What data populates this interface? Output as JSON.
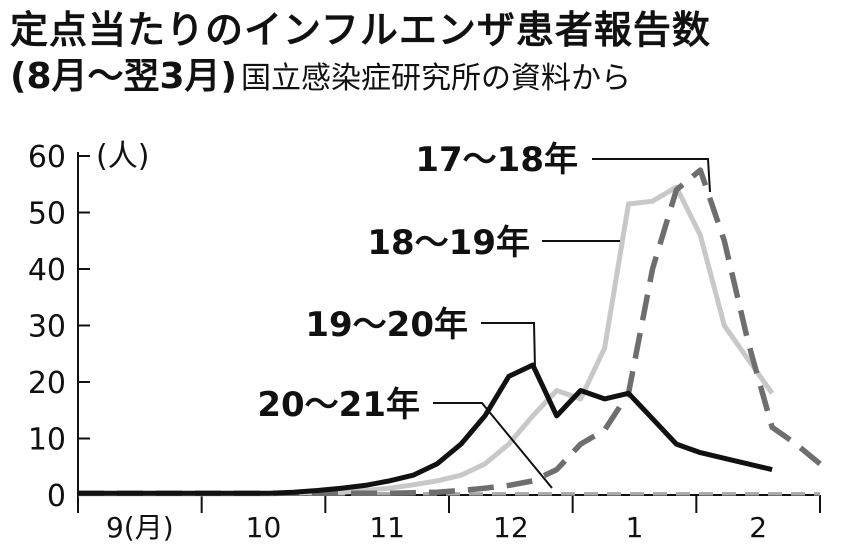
{
  "header": {
    "title": "定点当たりのインフルエンザ患者報告数",
    "subtitle_bold": "(8月〜翌3月)",
    "subtitle_source": "国立感染症研究所の資料から"
  },
  "chart_data": {
    "type": "line",
    "y_unit_label": "(人)",
    "ylim": [
      0,
      60
    ],
    "yticks": [
      0,
      10,
      20,
      30,
      40,
      50,
      60
    ],
    "month_labels": [
      "9(月)",
      "10",
      "11",
      "12",
      "1",
      "2"
    ],
    "x_range": [
      0,
      31
    ],
    "series": [
      {
        "name": "17〜18年",
        "color": "#6e6e6e",
        "dash": "long-dash",
        "x": [
          0,
          1,
          2,
          3,
          4,
          5,
          6,
          7,
          8,
          9,
          10,
          11,
          12,
          13,
          14,
          15,
          16,
          17,
          18,
          19,
          20,
          21,
          22,
          23,
          24,
          25,
          26,
          27,
          28,
          29,
          30,
          31
        ],
        "values": [
          0.3,
          0.3,
          0.3,
          0.3,
          0.3,
          0.3,
          0.3,
          0.3,
          0.3,
          0.3,
          0.3,
          0.3,
          0.3,
          0.3,
          0.4,
          0.5,
          0.8,
          1.2,
          1.7,
          2.5,
          4.5,
          9,
          11.5,
          18,
          40,
          54,
          57.5,
          45,
          27,
          12,
          9,
          5.5
        ]
      },
      {
        "name": "18〜19年",
        "color": "#c8c8c8",
        "dash": "solid",
        "x": [
          0,
          1,
          2,
          3,
          4,
          5,
          6,
          7,
          8,
          9,
          10,
          11,
          12,
          13,
          14,
          15,
          16,
          17,
          18,
          19,
          20,
          21,
          22,
          23,
          24,
          25,
          26,
          27,
          28,
          29,
          30,
          31
        ],
        "values": [
          0.2,
          0.2,
          0.2,
          0.2,
          0.2,
          0.2,
          0.2,
          0.2,
          0.2,
          0.3,
          0.4,
          0.5,
          0.8,
          1.2,
          1.8,
          2.5,
          3.5,
          5.5,
          9,
          14,
          18.5,
          17,
          26,
          51.5,
          52,
          54.5,
          46,
          30,
          24,
          18,
          null,
          null
        ]
      },
      {
        "name": "19〜20年",
        "color": "#111111",
        "dash": "solid",
        "x": [
          0,
          1,
          2,
          3,
          4,
          5,
          6,
          7,
          8,
          9,
          10,
          11,
          12,
          13,
          14,
          15,
          16,
          17,
          18,
          19,
          20,
          21,
          22,
          23,
          24,
          25,
          26,
          27,
          28,
          29,
          30,
          31
        ],
        "values": [
          0.3,
          0.3,
          0.3,
          0.3,
          0.3,
          0.3,
          0.3,
          0.3,
          0.3,
          0.5,
          0.8,
          1.2,
          1.7,
          2.5,
          3.5,
          5.5,
          9,
          14,
          21,
          23,
          14,
          18.5,
          17,
          18,
          13.5,
          9,
          7.5,
          6.5,
          5.5,
          4.5,
          null,
          null
        ]
      },
      {
        "name": "20〜21年",
        "color": "#a8a8a8",
        "dash": "short-dash",
        "x": [
          0,
          1,
          2,
          3,
          4,
          5,
          6,
          7,
          8,
          9,
          10,
          11,
          12,
          13,
          14,
          15,
          16,
          17,
          18,
          19,
          20,
          21,
          22,
          23,
          24,
          25,
          26,
          27,
          28,
          29,
          30,
          31
        ],
        "values": [
          0.2,
          0.2,
          0.2,
          0.2,
          0.2,
          0.2,
          0.2,
          0.2,
          0.2,
          0.2,
          0.2,
          0.2,
          0.2,
          0.2,
          0.2,
          0.2,
          0.2,
          0.2,
          0.2,
          0.2,
          0.2,
          0.2,
          0.2,
          0.2,
          0.2,
          0.2,
          0.2,
          0.2,
          0.2,
          0.2,
          0.2,
          0.2
        ]
      }
    ],
    "grid": false,
    "legend": "inline labels with leader lines"
  }
}
